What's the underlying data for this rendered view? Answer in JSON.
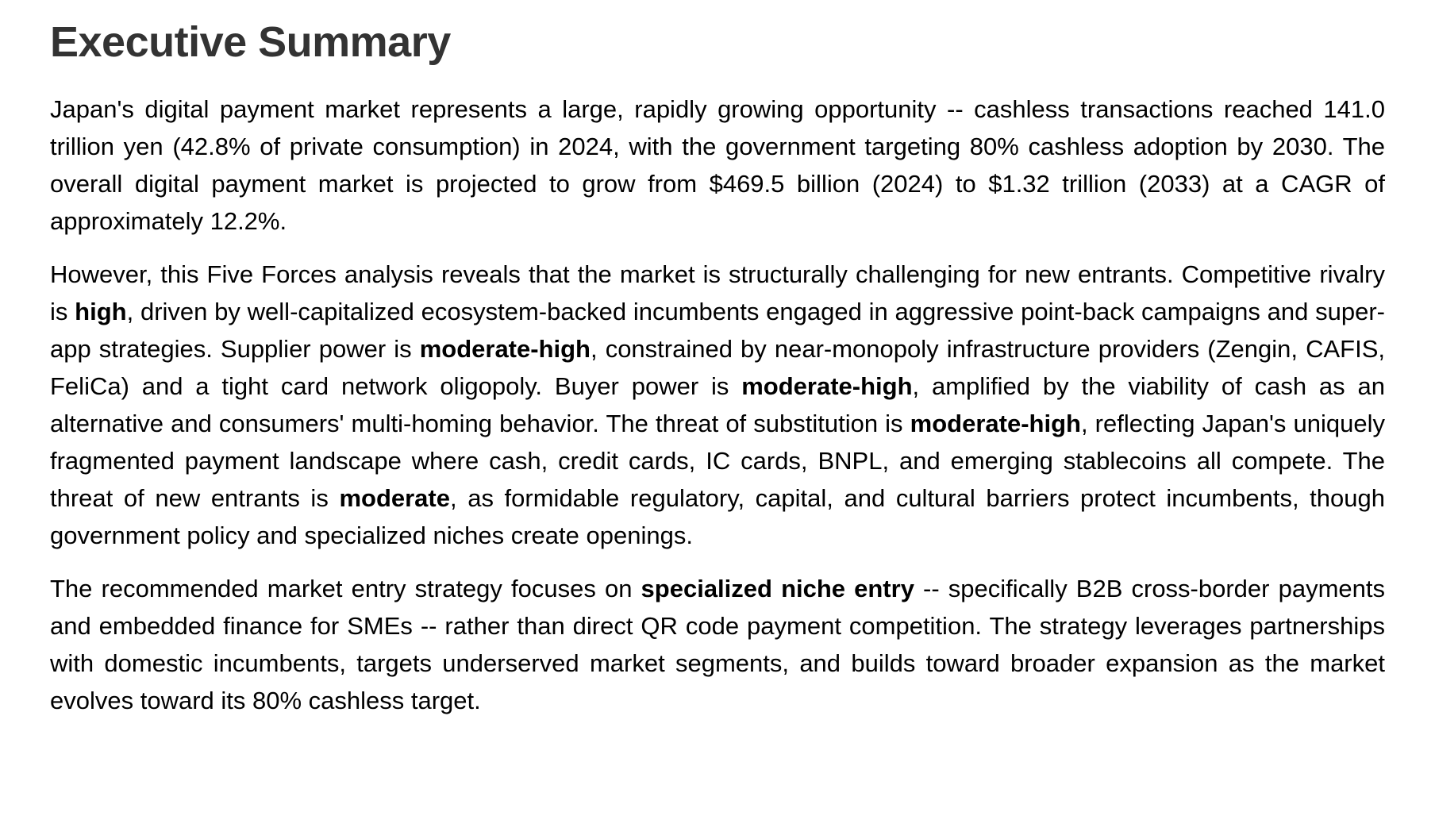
{
  "page": {
    "title": "Executive Summary"
  },
  "paragraphs": [
    {
      "segments": [
        {
          "bold": false,
          "text": "Japan's digital payment market represents a large, rapidly growing opportunity -- cashless transactions reached 141.0 trillion yen (42.8% of private consumption) in 2024, with the government targeting 80% cashless adoption by 2030. The overall digital payment market is projected to grow from $469.5 billion (2024) to $1.32 trillion (2033) at a CAGR of approximately 12.2%."
        }
      ]
    },
    {
      "segments": [
        {
          "bold": false,
          "text": "However, this Five Forces analysis reveals that the market is structurally challenging for new entrants. Competitive rivalry is "
        },
        {
          "bold": true,
          "text": "high"
        },
        {
          "bold": false,
          "text": ", driven by well-capitalized ecosystem-backed incumbents engaged in aggressive point-back campaigns and super-app strategies. Supplier power is "
        },
        {
          "bold": true,
          "text": "moderate-high"
        },
        {
          "bold": false,
          "text": ", constrained by near-monopoly infrastructure providers (Zengin, CAFIS, FeliCa) and a tight card network oligopoly. Buyer power is "
        },
        {
          "bold": true,
          "text": "moderate-high"
        },
        {
          "bold": false,
          "text": ", amplified by the viability of cash as an alternative and consumers' multi-homing behavior. The threat of substitution is "
        },
        {
          "bold": true,
          "text": "moderate-high"
        },
        {
          "bold": false,
          "text": ", reflecting Japan's uniquely fragmented payment landscape where cash, credit cards, IC cards, BNPL, and emerging stablecoins all compete. The threat of new entrants is "
        },
        {
          "bold": true,
          "text": "moderate"
        },
        {
          "bold": false,
          "text": ", as formidable regulatory, capital, and cultural barriers protect incumbents, though government policy and specialized niches create openings."
        }
      ]
    },
    {
      "segments": [
        {
          "bold": false,
          "text": "The recommended market entry strategy focuses on "
        },
        {
          "bold": true,
          "text": "specialized niche entry"
        },
        {
          "bold": false,
          "text": " -- specifically B2B cross-border payments and embedded finance for SMEs -- rather than direct QR code payment competition. The strategy leverages partnerships with domestic incumbents, targets underserved market segments, and builds toward broader expansion as the market evolves toward its 80% cashless target."
        }
      ]
    }
  ]
}
